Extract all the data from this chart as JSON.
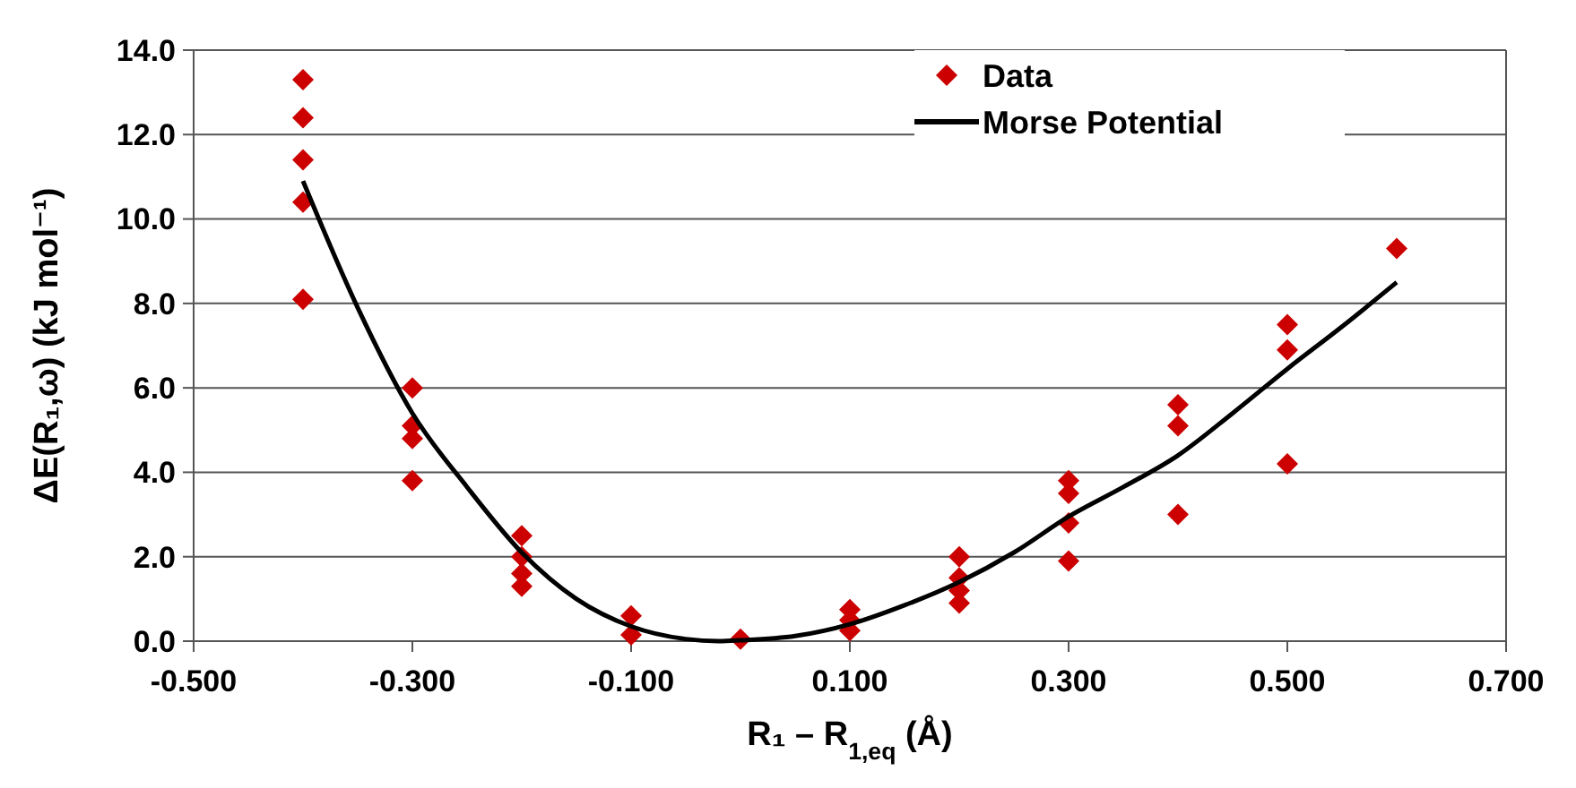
{
  "chart_data": {
    "type": "scatter",
    "xlabel": "R₁ – R$_{1,eq}$ (Å)",
    "ylabel": "ΔE(R₁,ω) (kJ mol⁻¹)",
    "xlim": [
      -0.5,
      0.7
    ],
    "xticks": [
      {
        "value": -0.5,
        "label": "-0.500"
      },
      {
        "value": -0.3,
        "label": "-0.300"
      },
      {
        "value": -0.1,
        "label": "-0.100"
      },
      {
        "value": 0.1,
        "label": "0.100"
      },
      {
        "value": 0.3,
        "label": "0.300"
      },
      {
        "value": 0.5,
        "label": "0.500"
      },
      {
        "value": 0.7,
        "label": "0.700"
      }
    ],
    "ylim": [
      0,
      14
    ],
    "yticks": [
      {
        "value": 0,
        "label": "0.0"
      },
      {
        "value": 2,
        "label": "2.0"
      },
      {
        "value": 4,
        "label": "4.0"
      },
      {
        "value": 6,
        "label": "6.0"
      },
      {
        "value": 8,
        "label": "8.0"
      },
      {
        "value": 10,
        "label": "10.0"
      },
      {
        "value": 12,
        "label": "12.0"
      },
      {
        "value": 14,
        "label": "14.0"
      }
    ],
    "grid": "y",
    "legend": "top right",
    "series": [
      {
        "name": "Data",
        "color": "#cc0000",
        "marker": "diamond",
        "x": [
          -0.4,
          -0.4,
          -0.4,
          -0.4,
          -0.4,
          -0.3,
          -0.3,
          -0.3,
          -0.3,
          -0.2,
          -0.2,
          -0.2,
          -0.2,
          -0.1,
          -0.1,
          0,
          0.1,
          0.1,
          0.1,
          0.2,
          0.2,
          0.2,
          0.2,
          0.3,
          0.3,
          0.3,
          0.3,
          0.4,
          0.4,
          0.4,
          0.5,
          0.5,
          0.5,
          0.6
        ],
        "values": [
          13.3,
          12.4,
          11.4,
          10.4,
          8.1,
          6.0,
          5.1,
          4.8,
          3.8,
          2.5,
          2.0,
          1.6,
          1.3,
          0.6,
          0.15,
          0.05,
          0.75,
          0.5,
          0.25,
          2.0,
          1.5,
          1.2,
          0.9,
          3.8,
          3.5,
          2.8,
          1.9,
          5.6,
          5.1,
          3.0,
          7.5,
          6.9,
          4.2,
          9.3
        ]
      },
      {
        "name": "Morse Potential",
        "type": "line",
        "color": "#000000",
        "marker": "none",
        "line_style": "solid",
        "x": [
          -0.4,
          -0.35,
          -0.3,
          -0.25,
          -0.2,
          -0.15,
          -0.1,
          -0.05,
          -0.02,
          0,
          0.05,
          0.1,
          0.15,
          0.2,
          0.25,
          0.3,
          0.35,
          0.4,
          0.45,
          0.5,
          0.55,
          0.6
        ],
        "values": [
          10.9,
          7.9,
          5.4,
          3.65,
          2.1,
          1.0,
          0.35,
          0.05,
          0,
          0.02,
          0.12,
          0.4,
          0.85,
          1.4,
          2.1,
          2.95,
          3.65,
          4.4,
          5.4,
          6.45,
          7.45,
          8.5
        ]
      }
    ]
  }
}
